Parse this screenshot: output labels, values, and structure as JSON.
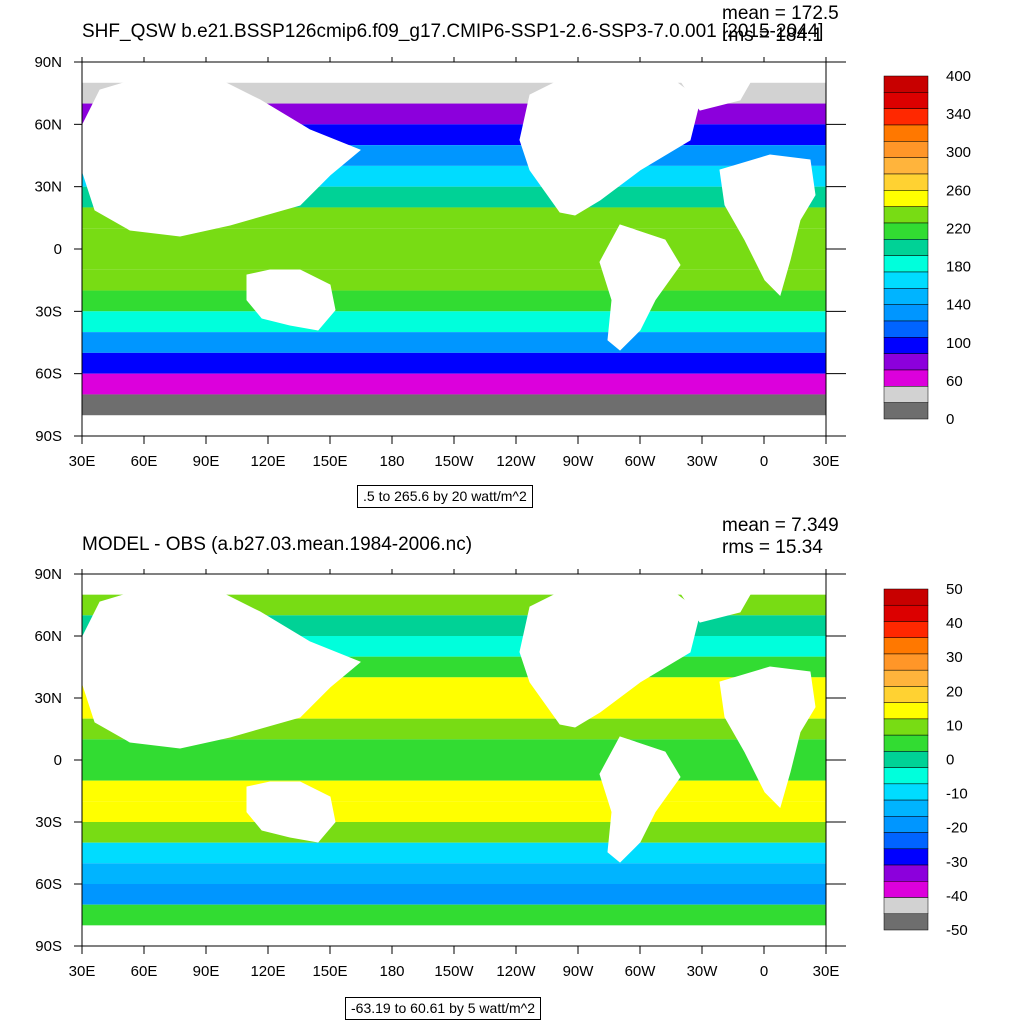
{
  "chart_data": [
    {
      "type": "heatmap",
      "title": "SHF_QSW b.e21.BSSP126cmip6.f09_g17.CMIP6-SSP1-2.6-SSP3-7.0.001 [2015-2044]",
      "mean_label": "mean = 172.5",
      "rms_label": "rms = 184.1",
      "info_label": ".5 to 265.6 by 20 watt/m^2",
      "x_ticks": [
        "30E",
        "60E",
        "90E",
        "120E",
        "150E",
        "180",
        "150W",
        "120W",
        "90W",
        "60W",
        "30W",
        "0",
        "30E"
      ],
      "y_ticks": [
        "90N",
        "60N",
        "30N",
        "0",
        "30S",
        "60S",
        "90S"
      ],
      "colorbar": {
        "labels": [
          "400",
          "340",
          "300",
          "260",
          "220",
          "180",
          "140",
          "100",
          "60",
          "0"
        ],
        "colors": [
          "#c80000",
          "#dc0000",
          "#ff2800",
          "#ff7800",
          "#ff9628",
          "#ffb43c",
          "#ffd232",
          "#ffff00",
          "#78dc14",
          "#32dc32",
          "#00d296",
          "#00ffdc",
          "#00dcff",
          "#00b4ff",
          "#0096ff",
          "#0064ff",
          "#0000ff",
          "#8c00dc",
          "#dc00dc",
          "#d2d2d2",
          "#6e6e6e"
        ]
      },
      "bands": [
        {
          "lat": 75,
          "value": 30
        },
        {
          "lat": 65,
          "value": 60
        },
        {
          "lat": 55,
          "value": 90
        },
        {
          "lat": 45,
          "value": 120
        },
        {
          "lat": 35,
          "value": 160
        },
        {
          "lat": 25,
          "value": 200
        },
        {
          "lat": 15,
          "value": 230
        },
        {
          "lat": 5,
          "value": 240
        },
        {
          "lat": -5,
          "value": 245
        },
        {
          "lat": -15,
          "value": 235
        },
        {
          "lat": -25,
          "value": 215
        },
        {
          "lat": -35,
          "value": 180
        },
        {
          "lat": -45,
          "value": 130
        },
        {
          "lat": -55,
          "value": 80
        },
        {
          "lat": -65,
          "value": 50
        },
        {
          "lat": -75,
          "value": 10
        }
      ]
    },
    {
      "type": "heatmap",
      "title": "MODEL - OBS (a.b27.03.mean.1984-2006.nc)",
      "mean_label": "mean = 7.349",
      "rms_label": "rms = 15.34",
      "info_label": "-63.19 to 60.61 by 5 watt/m^2",
      "x_ticks": [
        "30E",
        "60E",
        "90E",
        "120E",
        "150E",
        "180",
        "150W",
        "120W",
        "90W",
        "60W",
        "30W",
        "0",
        "30E"
      ],
      "y_ticks": [
        "90N",
        "60N",
        "30N",
        "0",
        "30S",
        "60S",
        "90S"
      ],
      "colorbar": {
        "labels": [
          "50",
          "40",
          "30",
          "20",
          "10",
          "0",
          "-10",
          "-20",
          "-30",
          "-40",
          "-50"
        ],
        "colors": [
          "#c80000",
          "#dc0000",
          "#ff2800",
          "#ff7800",
          "#ff9628",
          "#ffb43c",
          "#ffd232",
          "#ffff00",
          "#78dc14",
          "#32dc32",
          "#00d296",
          "#00ffdc",
          "#00dcff",
          "#00b4ff",
          "#0096ff",
          "#0064ff",
          "#0000ff",
          "#8c00dc",
          "#dc00dc",
          "#d2d2d2",
          "#6e6e6e"
        ]
      },
      "bands": [
        {
          "lat": 75,
          "value": 10
        },
        {
          "lat": 65,
          "value": 0
        },
        {
          "lat": 55,
          "value": -5
        },
        {
          "lat": 45,
          "value": 5
        },
        {
          "lat": 35,
          "value": 15
        },
        {
          "lat": 25,
          "value": 12
        },
        {
          "lat": 15,
          "value": 8
        },
        {
          "lat": 5,
          "value": 3
        },
        {
          "lat": -5,
          "value": 5
        },
        {
          "lat": -15,
          "value": 12
        },
        {
          "lat": -25,
          "value": 15
        },
        {
          "lat": -35,
          "value": 8
        },
        {
          "lat": -45,
          "value": -8
        },
        {
          "lat": -55,
          "value": -12
        },
        {
          "lat": -65,
          "value": -18
        },
        {
          "lat": -75,
          "value": 5
        }
      ]
    }
  ]
}
